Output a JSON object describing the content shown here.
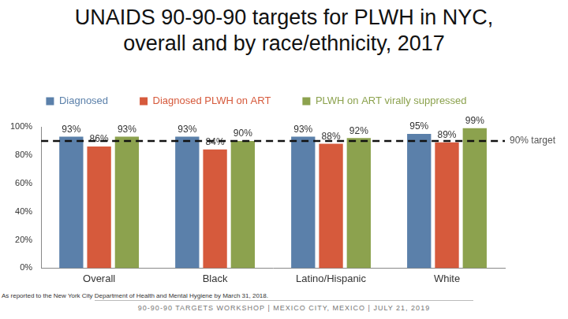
{
  "chart_data": {
    "type": "bar",
    "title": "UNAIDS 90-90-90 targets for PLWH in NYC, overall and by race/ethnicity, 2017",
    "categories": [
      "Overall",
      "Black",
      "Latino/Hispanic",
      "White"
    ],
    "series": [
      {
        "name": "Diagnosed",
        "color": "#5b80aa",
        "values": [
          93,
          93,
          93,
          95
        ],
        "value_labels": [
          "93%",
          "93%",
          "93%",
          "95%"
        ]
      },
      {
        "name": "Diagnosed PLWH on ART",
        "color": "#d65a3c",
        "values": [
          86,
          84,
          88,
          89
        ],
        "value_labels": [
          "86%",
          "84%",
          "88%",
          "89%"
        ]
      },
      {
        "name": "PLWH on ART virally suppressed",
        "color": "#8ca24e",
        "values": [
          93,
          90,
          92,
          99
        ],
        "value_labels": [
          "93%",
          "90%",
          "92%",
          "99%"
        ]
      }
    ],
    "ylim": [
      0,
      100
    ],
    "yticks": [
      {
        "value": 0,
        "label": "0%"
      },
      {
        "value": 20,
        "label": "20%"
      },
      {
        "value": 40,
        "label": "40%"
      },
      {
        "value": 60,
        "label": "60%"
      },
      {
        "value": 80,
        "label": "80%"
      },
      {
        "value": 100,
        "label": "100%"
      }
    ],
    "grid": false,
    "legend": "top",
    "data_labels": true,
    "annotations": [
      {
        "y": 90,
        "label": "90% target",
        "line_style": "dashed"
      }
    ],
    "footnote": "As reported to the New York City Department of Health and Mental Hygiene by March 31, 2018.",
    "footer": "90-90-90 TARGETS WORKSHOP | MEXICO CITY, MEXICO | JULY 21, 2019"
  }
}
